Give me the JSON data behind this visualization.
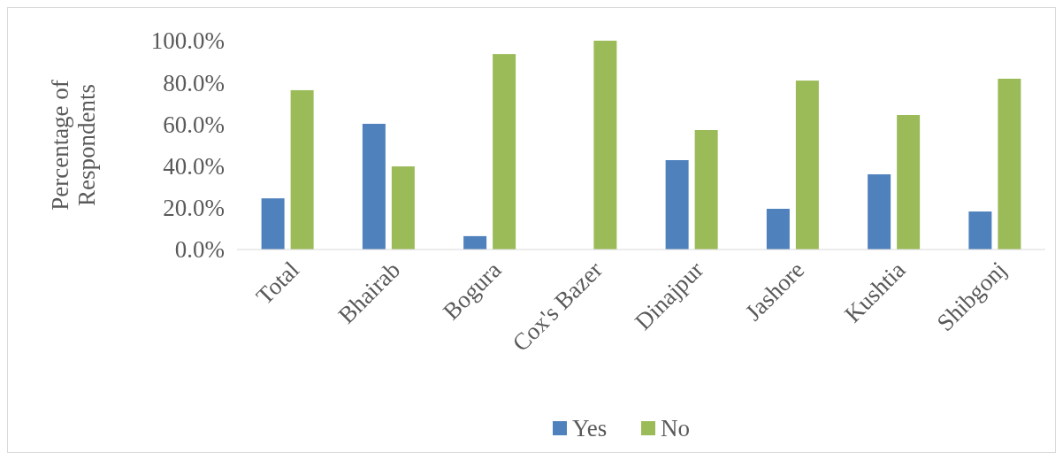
{
  "chart_data": {
    "type": "bar",
    "ylabel": "Percentage of Respondents",
    "categories": [
      "Total",
      "Bhairab",
      "Bogura",
      "Cox's Bazer",
      "Dinajpur",
      "Jashore",
      "Kushtia",
      "Shibgonj"
    ],
    "series": [
      {
        "name": "Yes",
        "color": "#4f81bd",
        "values": [
          24.5,
          60.2,
          6.4,
          0,
          42.8,
          19.5,
          36.0,
          18.2
        ]
      },
      {
        "name": "No",
        "color": "#9bbb59",
        "values": [
          76.3,
          39.8,
          93.6,
          100,
          57.2,
          80.9,
          64.4,
          81.8
        ]
      }
    ],
    "ylim": [
      0,
      100
    ],
    "yticks": [
      {
        "value": 0,
        "label": "0.0%"
      },
      {
        "value": 20,
        "label": "20.0%"
      },
      {
        "value": 40,
        "label": "40.0%"
      },
      {
        "value": 60,
        "label": "60.0%"
      },
      {
        "value": 80,
        "label": "80.0%"
      },
      {
        "value": 100,
        "label": "100.0%"
      }
    ],
    "grid": false,
    "legend": "bottom"
  }
}
